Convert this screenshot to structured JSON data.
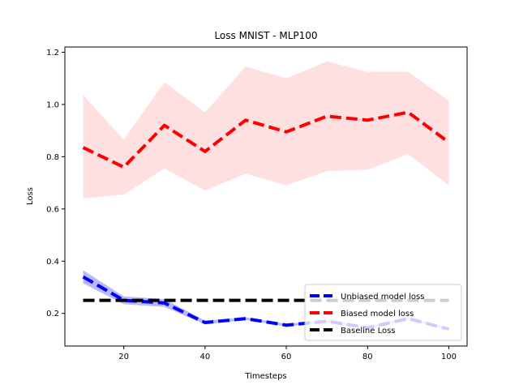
{
  "chart_data": {
    "type": "line",
    "title": "Loss MNIST - MLP100",
    "xlabel": "Timesteps",
    "ylabel": "Loss",
    "xlim": [
      5.5,
      104.5
    ],
    "ylim": [
      0.075,
      1.22
    ],
    "xticks": [
      20,
      40,
      60,
      80,
      100
    ],
    "yticks": [
      0.2,
      0.4,
      0.6,
      0.8,
      1.0,
      1.2
    ],
    "ytick_labels": [
      "0.2",
      "0.4",
      "0.6",
      "0.8",
      "1.0",
      "1.2"
    ],
    "grid": false,
    "legend_position": "lower-right",
    "x": [
      10,
      20,
      30,
      40,
      50,
      60,
      70,
      80,
      90,
      100
    ],
    "series": [
      {
        "name": "Unbiased model loss",
        "color": "#0000ff",
        "band_color": "#b9b9ff",
        "style": "dashed",
        "values": [
          0.34,
          0.25,
          0.24,
          0.165,
          0.18,
          0.155,
          0.17,
          0.145,
          0.18,
          0.14
        ],
        "upper": [
          0.365,
          0.265,
          0.255,
          0.172,
          0.185,
          0.16,
          0.175,
          0.15,
          0.185,
          0.145
        ],
        "lower": [
          0.315,
          0.235,
          0.225,
          0.158,
          0.175,
          0.15,
          0.165,
          0.14,
          0.175,
          0.135
        ]
      },
      {
        "name": "Biased model loss",
        "color": "#ff0000",
        "band_color": "#ffe0e0",
        "style": "dashed",
        "values": [
          0.835,
          0.76,
          0.92,
          0.82,
          0.94,
          0.895,
          0.955,
          0.94,
          0.97,
          0.855
        ],
        "upper": [
          1.035,
          0.865,
          1.085,
          0.97,
          1.145,
          1.1,
          1.165,
          1.125,
          1.125,
          1.015
        ],
        "lower": [
          0.64,
          0.655,
          0.755,
          0.67,
          0.735,
          0.69,
          0.745,
          0.75,
          0.81,
          0.69
        ]
      },
      {
        "name": "Baseline Loss",
        "color": "#000000",
        "style": "dashed",
        "values": [
          0.25,
          0.25,
          0.25,
          0.25,
          0.25,
          0.25,
          0.25,
          0.25,
          0.25,
          0.25
        ]
      }
    ]
  }
}
